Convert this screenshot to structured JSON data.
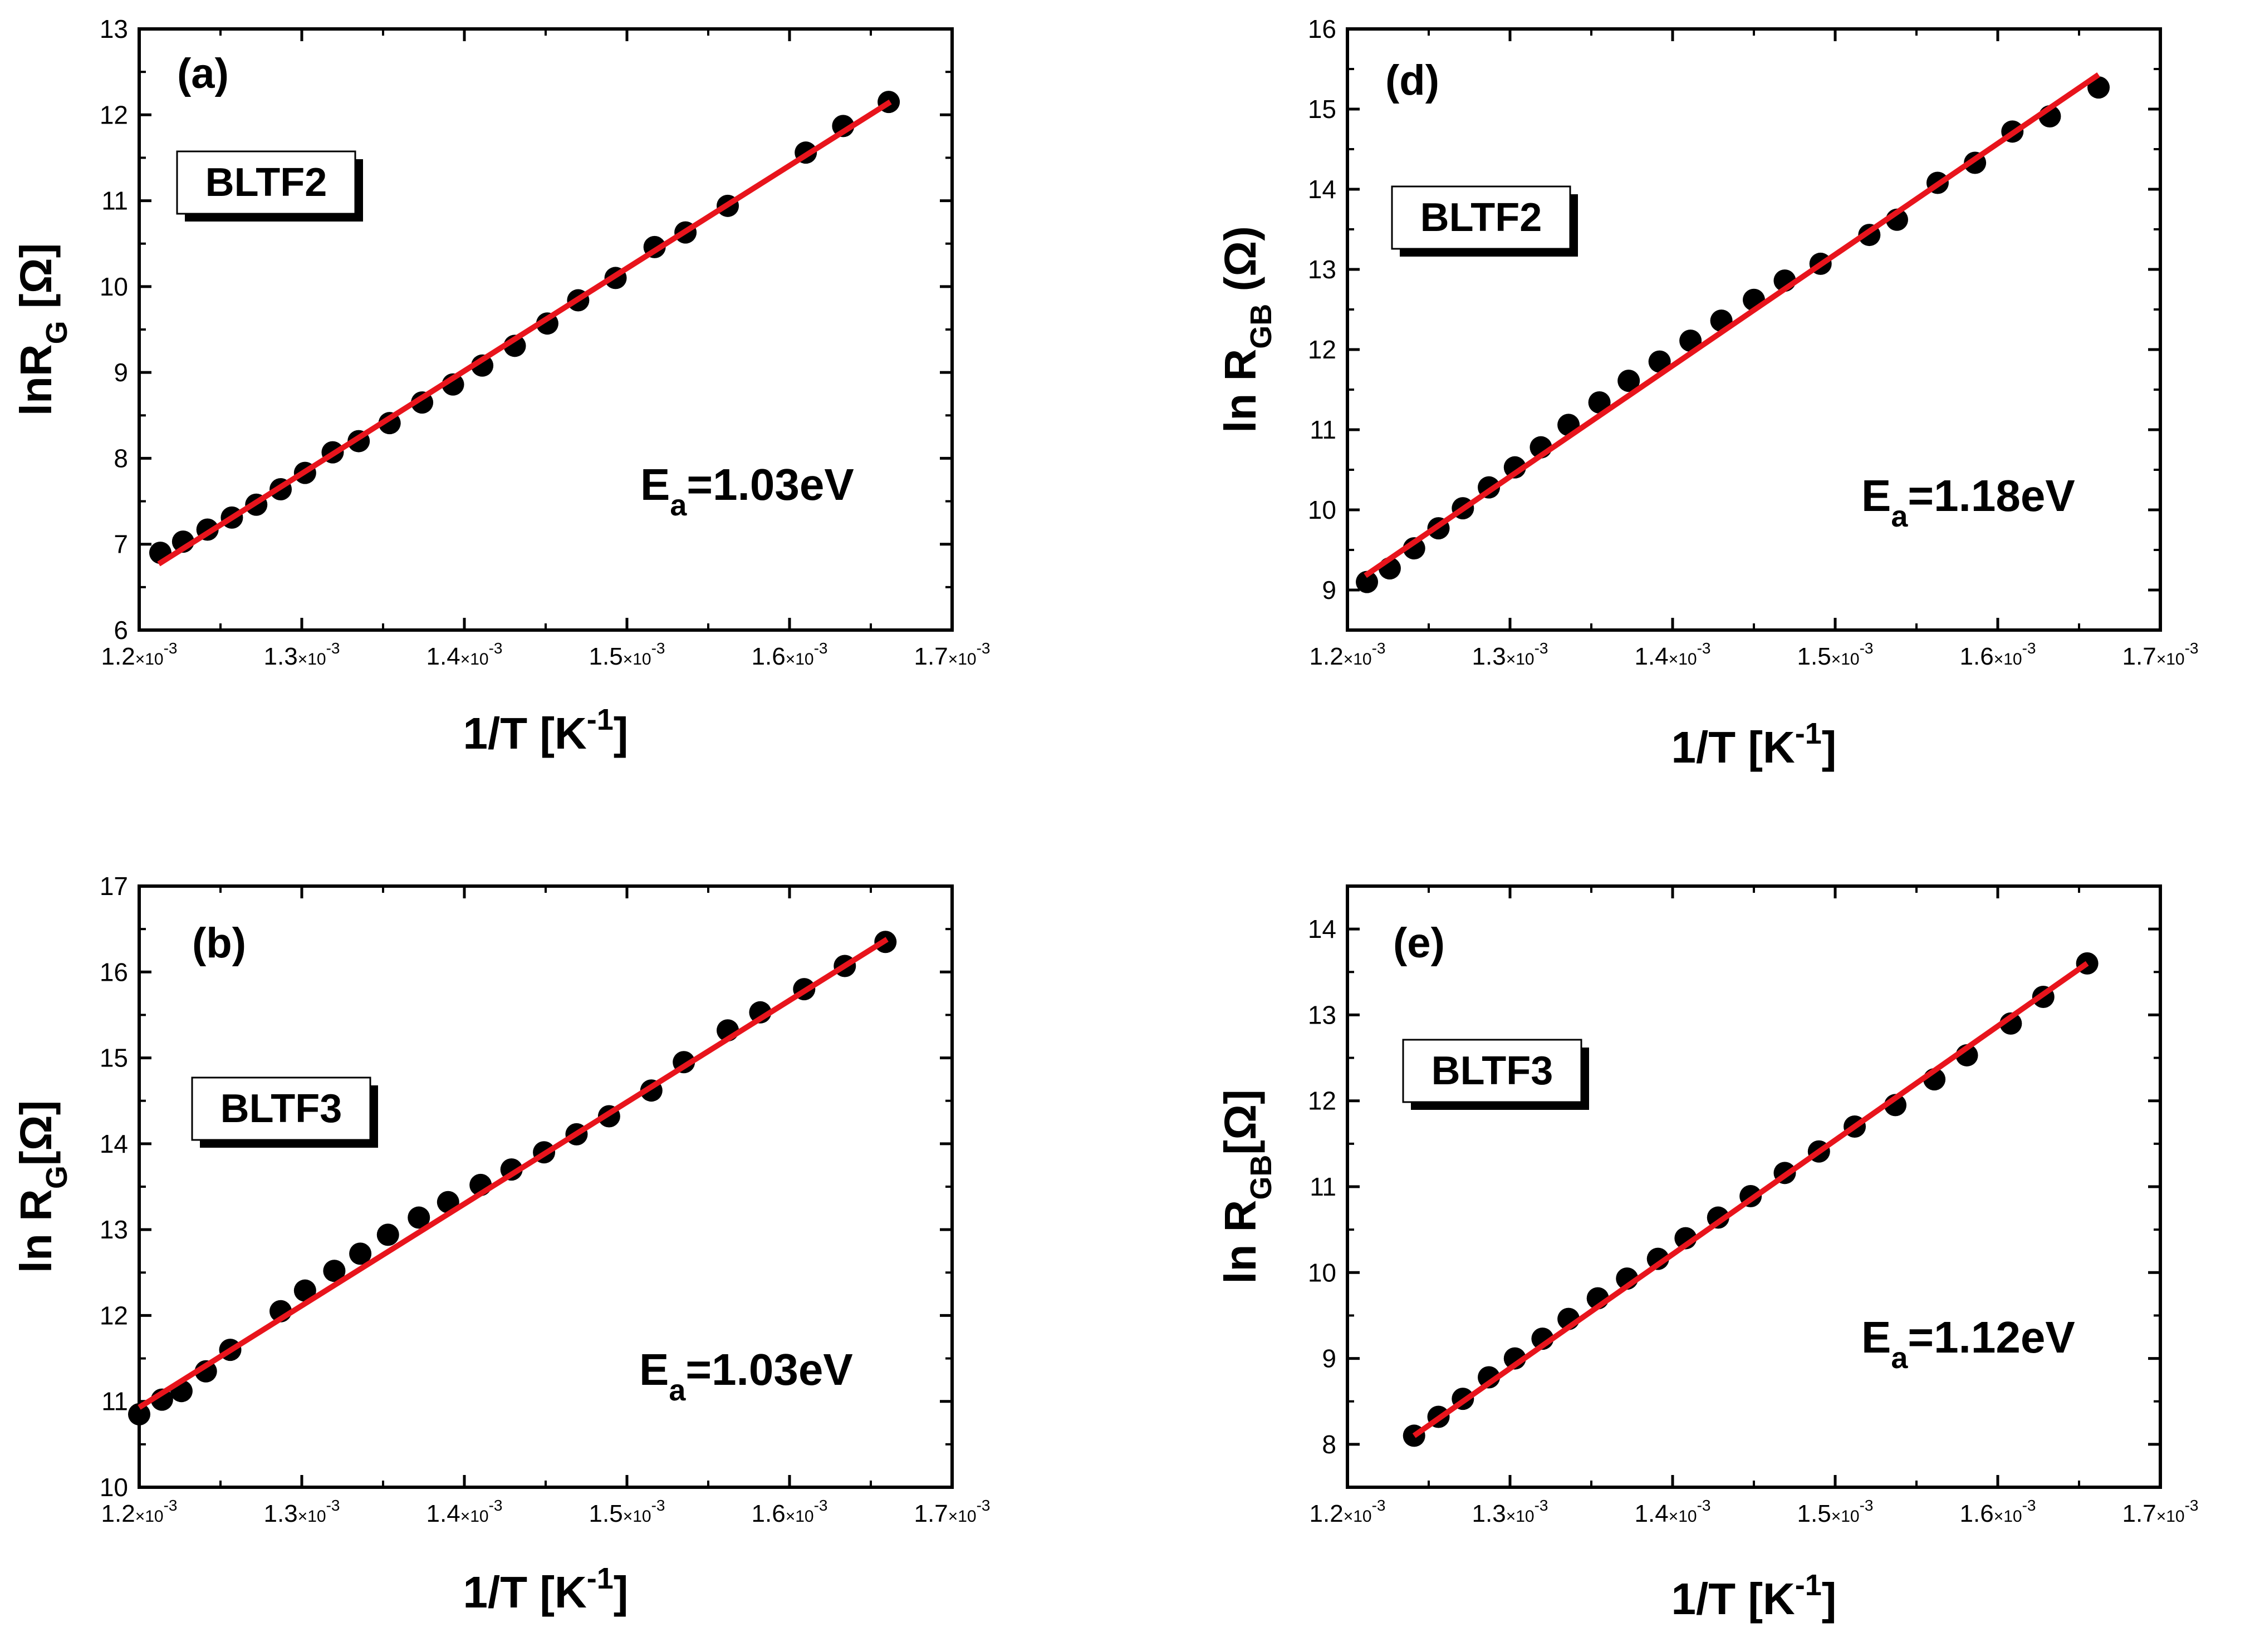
{
  "figure": {
    "colors": {
      "axis": "#000000",
      "marker": "#000000",
      "fit_line": "#e8141c",
      "background": "#ffffff"
    }
  },
  "chart_data": [
    {
      "type": "scatter",
      "panel_label": "(a)",
      "sample_label": "BLTF2",
      "annotation": {
        "symbol": "E",
        "subscript": "a",
        "value": "=1.03eV"
      },
      "ylabel": {
        "main": "lnR",
        "subscript": "G",
        "unit": " [Ω]"
      },
      "xlabel": {
        "main": "1/T [K",
        "superscript": "-1",
        "close": "]"
      },
      "xlim": [
        0.0012,
        0.0017
      ],
      "ylim": [
        6,
        13
      ],
      "xticks": [
        0.0012,
        0.0013,
        0.0014,
        0.0015,
        0.0016,
        0.0017
      ],
      "xtick_labels": [
        {
          "mantissa": "1.2",
          "exp": "-3"
        },
        {
          "mantissa": "1.3",
          "exp": "-3"
        },
        {
          "mantissa": "1.4",
          "exp": "-3"
        },
        {
          "mantissa": "1.5",
          "exp": "-3"
        },
        {
          "mantissa": "1.6",
          "exp": "-3"
        },
        {
          "mantissa": "1.7",
          "exp": "-3"
        }
      ],
      "yticks": [
        6,
        7,
        8,
        9,
        10,
        11,
        12,
        13
      ],
      "x": [
        0.001213,
        0.001227,
        0.001242,
        0.001257,
        0.001272,
        0.001287,
        0.001302,
        0.001319,
        0.001335,
        0.001354,
        0.001374,
        0.001393,
        0.001411,
        0.001431,
        0.001451,
        0.00147,
        0.001493,
        0.001517,
        0.001536,
        0.001562,
        0.00161,
        0.001633,
        0.001661
      ],
      "y": [
        6.9,
        7.03,
        7.17,
        7.31,
        7.46,
        7.64,
        7.83,
        8.07,
        8.2,
        8.41,
        8.65,
        8.86,
        9.08,
        9.31,
        9.57,
        9.84,
        10.1,
        10.46,
        10.63,
        10.94,
        11.56,
        11.87,
        12.15
      ],
      "fit": {
        "x": [
          0.001212,
          0.001662
        ],
        "y": [
          6.77,
          12.15
        ]
      }
    },
    {
      "type": "scatter",
      "panel_label": "(b)",
      "sample_label": "BLTF3",
      "annotation": {
        "symbol": "E",
        "subscript": "a",
        "value": "=1.03eV"
      },
      "ylabel": {
        "main": "ln R",
        "subscript": "G",
        "unit": "[Ω]"
      },
      "xlabel": {
        "main": "1/T [K",
        "superscript": "-1",
        "close": "]"
      },
      "xlim": [
        0.0012,
        0.0017
      ],
      "ylim": [
        10,
        17
      ],
      "xticks": [
        0.0012,
        0.0013,
        0.0014,
        0.0015,
        0.0016,
        0.0017
      ],
      "xtick_labels": [
        {
          "mantissa": "1.2",
          "exp": "-3"
        },
        {
          "mantissa": "1.3",
          "exp": "-3"
        },
        {
          "mantissa": "1.4",
          "exp": "-3"
        },
        {
          "mantissa": "1.5",
          "exp": "-3"
        },
        {
          "mantissa": "1.6",
          "exp": "-3"
        },
        {
          "mantissa": "1.7",
          "exp": "-3"
        }
      ],
      "yticks": [
        10,
        11,
        12,
        13,
        14,
        15,
        16,
        17
      ],
      "x": [
        0.0012,
        0.001214,
        0.001226,
        0.001241,
        0.001256,
        0.001287,
        0.001302,
        0.00132,
        0.001336,
        0.001353,
        0.001372,
        0.00139,
        0.00141,
        0.001429,
        0.001449,
        0.001469,
        0.001489,
        0.001515,
        0.001535,
        0.001562,
        0.001582,
        0.001609,
        0.001634,
        0.001659
      ],
      "y": [
        10.85,
        11.02,
        11.12,
        11.35,
        11.6,
        12.05,
        12.29,
        12.52,
        12.72,
        12.94,
        13.14,
        13.32,
        13.52,
        13.7,
        13.9,
        14.11,
        14.32,
        14.62,
        14.95,
        15.32,
        15.53,
        15.8,
        16.07,
        16.35
      ],
      "fit": {
        "x": [
          0.0012,
          0.00166
        ],
        "y": [
          10.93,
          16.38
        ]
      }
    },
    {
      "type": "scatter",
      "panel_label": "(d)",
      "sample_label": "BLTF2",
      "annotation": {
        "symbol": "E",
        "subscript": "a",
        "value": "=1.18eV"
      },
      "ylabel": {
        "main": "ln R",
        "subscript": "GB",
        "unit": " (Ω)"
      },
      "xlabel": {
        "main": "1/T [K",
        "superscript": "-1",
        "close": "]"
      },
      "xlim": [
        0.0012,
        0.0017
      ],
      "ylim": [
        8.5,
        16
      ],
      "xticks": [
        0.0012,
        0.0013,
        0.0014,
        0.0015,
        0.0016,
        0.0017
      ],
      "xtick_labels": [
        {
          "mantissa": "1.2",
          "exp": "-3"
        },
        {
          "mantissa": "1.3",
          "exp": "-3"
        },
        {
          "mantissa": "1.4",
          "exp": "-3"
        },
        {
          "mantissa": "1.5",
          "exp": "-3"
        },
        {
          "mantissa": "1.6",
          "exp": "-3"
        },
        {
          "mantissa": "1.7",
          "exp": "-3"
        }
      ],
      "yticks": [
        9,
        10,
        11,
        12,
        13,
        14,
        15,
        16
      ],
      "x": [
        0.001212,
        0.001226,
        0.001241,
        0.001256,
        0.001271,
        0.001287,
        0.001303,
        0.001319,
        0.001336,
        0.001355,
        0.001373,
        0.001392,
        0.001411,
        0.00143,
        0.00145,
        0.001469,
        0.001491,
        0.001521,
        0.001538,
        0.001563,
        0.001586,
        0.001609,
        0.001632,
        0.001662
      ],
      "y": [
        9.1,
        9.27,
        9.52,
        9.77,
        10.02,
        10.28,
        10.53,
        10.78,
        11.06,
        11.34,
        11.61,
        11.85,
        12.11,
        12.36,
        12.62,
        12.86,
        13.07,
        13.43,
        13.62,
        14.08,
        14.33,
        14.72,
        14.91,
        15.27
      ],
      "fit": {
        "x": [
          0.001211,
          0.001662
        ],
        "y": [
          9.18,
          15.43
        ]
      }
    },
    {
      "type": "scatter",
      "panel_label": "(e)",
      "sample_label": "BLTF3",
      "annotation": {
        "symbol": "E",
        "subscript": "a",
        "value": "=1.12eV"
      },
      "ylabel": {
        "main": "ln R",
        "subscript": "GB",
        "unit": "[Ω]"
      },
      "xlabel": {
        "main": "1/T [K",
        "superscript": "-1",
        "close": "]"
      },
      "xlim": [
        0.0012,
        0.0017
      ],
      "ylim": [
        7.5,
        14.5
      ],
      "xticks": [
        0.0012,
        0.0013,
        0.0014,
        0.0015,
        0.0016,
        0.0017
      ],
      "xtick_labels": [
        {
          "mantissa": "1.2",
          "exp": "-3"
        },
        {
          "mantissa": "1.3",
          "exp": "-3"
        },
        {
          "mantissa": "1.4",
          "exp": "-3"
        },
        {
          "mantissa": "1.5",
          "exp": "-3"
        },
        {
          "mantissa": "1.6",
          "exp": "-3"
        },
        {
          "mantissa": "1.7",
          "exp": "-3"
        }
      ],
      "yticks": [
        8,
        9,
        10,
        11,
        12,
        13,
        14
      ],
      "x": [
        0.001241,
        0.001256,
        0.001271,
        0.001287,
        0.001303,
        0.00132,
        0.001336,
        0.001354,
        0.001372,
        0.001391,
        0.001408,
        0.001428,
        0.001448,
        0.001469,
        0.00149,
        0.001512,
        0.001537,
        0.001561,
        0.001581,
        0.001608,
        0.001628,
        0.001655
      ],
      "y": [
        8.1,
        8.32,
        8.53,
        8.78,
        9.0,
        9.23,
        9.46,
        9.7,
        9.93,
        10.16,
        10.4,
        10.64,
        10.89,
        11.16,
        11.41,
        11.7,
        11.95,
        12.25,
        12.53,
        12.9,
        13.21,
        13.6
      ],
      "fit": {
        "x": [
          0.001241,
          0.001655
        ],
        "y": [
          8.1,
          13.6
        ]
      }
    }
  ]
}
